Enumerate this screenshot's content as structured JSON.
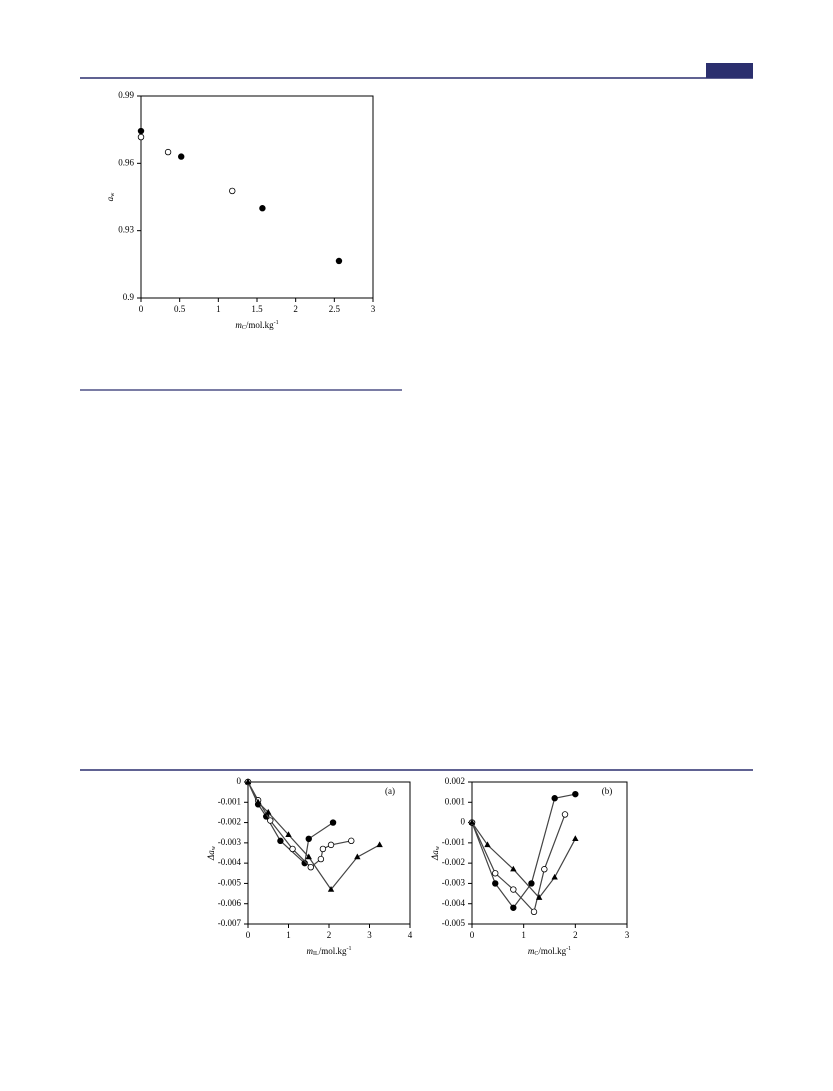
{
  "charts": [
    {
      "type": "scatter",
      "xlim": [
        0,
        3
      ],
      "xticks": [
        0,
        0.5,
        1,
        1.5,
        2,
        2.5,
        3
      ],
      "ylim": [
        0.9,
        0.99
      ],
      "yticks": [
        0.9,
        0.93,
        0.96,
        0.99
      ],
      "xlabel": {
        "main": "m",
        "sub": "C",
        "unit": "/mol.kg",
        "sup": "-1"
      },
      "ylabel": {
        "main": "a",
        "sub": "w"
      },
      "series": [
        {
          "marker": "filled-circle",
          "color": "#000000",
          "x": [
            0,
            0.52,
            1.57,
            2.56
          ],
          "values": [
            0.9744,
            0.963,
            0.94,
            0.9165
          ]
        },
        {
          "marker": "open-circle",
          "color": "#000000",
          "x": [
            0,
            0.35,
            1.18
          ],
          "values": [
            0.9717,
            0.965,
            0.9477
          ]
        }
      ]
    },
    {
      "type": "line",
      "annotation": "(a)",
      "xlim": [
        0,
        4
      ],
      "xticks": [
        0,
        1,
        2,
        3,
        4
      ],
      "ylim": [
        -0.007,
        0
      ],
      "yticks": [
        0,
        -0.001,
        -0.002,
        -0.003,
        -0.004,
        -0.005,
        -0.006,
        -0.007
      ],
      "xlabel": {
        "main": "m",
        "sub": "IL",
        "unit": "/mol.kg",
        "sup": "-1"
      },
      "ylabel": {
        "main": "Δa",
        "sub": "w"
      },
      "series": [
        {
          "marker": "filled-circle",
          "color": "#000000",
          "x": [
            0,
            0.25,
            0.45,
            0.8,
            1.4,
            1.5,
            2.1
          ],
          "values": [
            0,
            -0.0011,
            -0.0017,
            -0.0029,
            -0.004,
            -0.0028,
            -0.002
          ]
        },
        {
          "marker": "open-circle",
          "color": "#000000",
          "x": [
            0,
            0.25,
            0.55,
            1.1,
            1.55,
            1.8,
            1.85,
            2.05,
            2.55
          ],
          "values": [
            0,
            -0.0009,
            -0.0019,
            -0.0033,
            -0.0042,
            -0.0038,
            -0.0033,
            -0.0031,
            -0.0029
          ]
        },
        {
          "marker": "filled-triangle",
          "color": "#000000",
          "x": [
            0,
            0.25,
            0.5,
            1,
            1.5,
            2.05,
            2.7,
            3.25
          ],
          "values": [
            0,
            -0.001,
            -0.0015,
            -0.0026,
            -0.0037,
            -0.0053,
            -0.0037,
            -0.0031
          ]
        }
      ]
    },
    {
      "type": "line",
      "annotation": "(b)",
      "xlim": [
        0,
        3
      ],
      "xticks": [
        0,
        1,
        2,
        3
      ],
      "ylim": [
        -0.005,
        0.002
      ],
      "yticks": [
        0.002,
        0.001,
        0,
        -0.001,
        -0.002,
        -0.003,
        -0.004,
        -0.005
      ],
      "xlabel": {
        "main": "m",
        "sub": "C",
        "unit": "/mol.kg",
        "sup": "-1"
      },
      "ylabel": {
        "main": "Δa",
        "sub": "w"
      },
      "series": [
        {
          "marker": "filled-circle",
          "color": "#000000",
          "x": [
            0,
            0.45,
            0.8,
            1.15,
            1.6,
            2
          ],
          "values": [
            0,
            -0.003,
            -0.0042,
            -0.003,
            0.0012,
            0.0014
          ]
        },
        {
          "marker": "open-circle",
          "color": "#000000",
          "x": [
            0,
            0.45,
            0.8,
            1.2,
            1.4,
            1.8
          ],
          "values": [
            0,
            -0.0025,
            -0.0033,
            -0.0044,
            -0.0023,
            0.0004
          ]
        },
        {
          "marker": "filled-triangle",
          "color": "#000000",
          "x": [
            0,
            0.3,
            0.8,
            1.3,
            1.6,
            2
          ],
          "values": [
            0,
            -0.0011,
            -0.0023,
            -0.0037,
            -0.0027,
            -0.0008
          ]
        }
      ]
    }
  ]
}
